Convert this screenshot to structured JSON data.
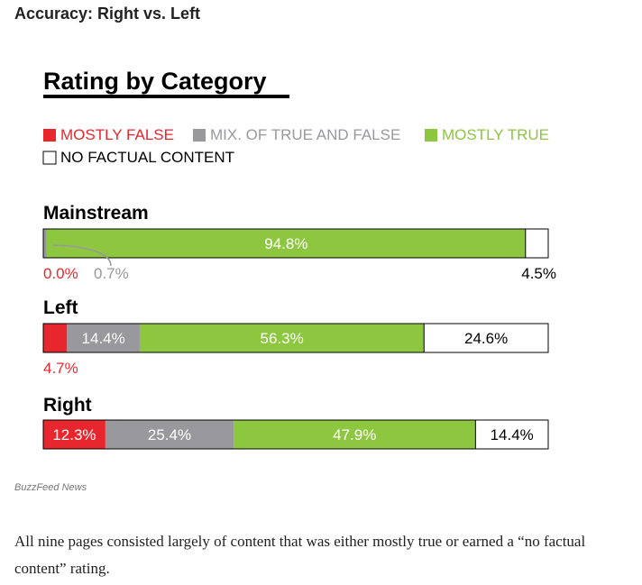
{
  "page": {
    "heading": "Accuracy: Right vs. Left",
    "credit": "BuzzFeed News",
    "caption": "All nine pages consisted largely of content that was either mostly true or earned a “no factual content” rating."
  },
  "chart_data": {
    "type": "bar",
    "stacked": true,
    "orientation": "horizontal",
    "title": "Rating by Category",
    "xlabel": "",
    "ylabel": "",
    "xlim": [
      0,
      100
    ],
    "grid": false,
    "legend_position": "top-left",
    "categories": [
      "Mainstream",
      "Left",
      "Right"
    ],
    "series": [
      {
        "name": "MOSTLY FALSE",
        "color": "#e8262d",
        "values": [
          0.0,
          4.7,
          12.3
        ],
        "labels": [
          "0.0%",
          "4.7%",
          "12.3%"
        ]
      },
      {
        "name": "MIX. OF TRUE AND FALSE",
        "color": "#99999d",
        "values": [
          0.7,
          14.4,
          25.4
        ],
        "labels": [
          "0.7%",
          "14.4%",
          "25.4%"
        ]
      },
      {
        "name": "MOSTLY TRUE",
        "color": "#8dc63f",
        "values": [
          94.8,
          56.3,
          47.9
        ],
        "labels": [
          "94.8%",
          "56.3%",
          "47.9%"
        ]
      },
      {
        "name": "NO FACTUAL CONTENT",
        "color": "#ffffff",
        "values": [
          4.5,
          24.6,
          14.4
        ],
        "labels": [
          "4.5%",
          "24.6%",
          "14.4%"
        ]
      }
    ]
  }
}
